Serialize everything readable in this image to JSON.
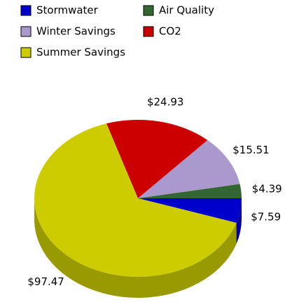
{
  "chart_data": {
    "type": "pie",
    "categories": [
      "Stormwater",
      "Air Quality",
      "Winter Savings",
      "CO2",
      "Summer Savings"
    ],
    "values": [
      7.59,
      4.39,
      15.51,
      24.93,
      97.47
    ],
    "value_labels": [
      "$7.59",
      "$4.39",
      "$15.51",
      "$24.93",
      "$97.47"
    ],
    "colors": [
      "#0000cc",
      "#336633",
      "#aa99cc",
      "#cc0000",
      "#cccc00"
    ],
    "legend": "top"
  }
}
